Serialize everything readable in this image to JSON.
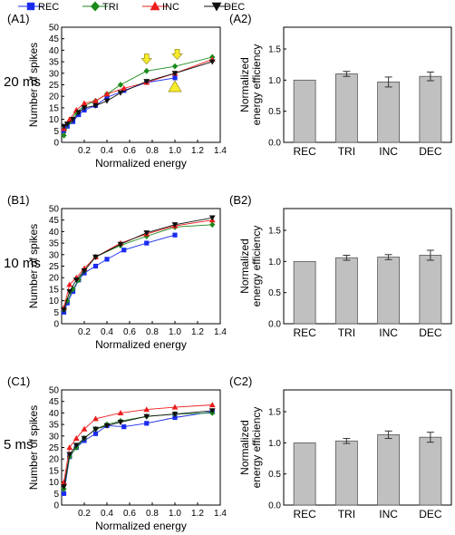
{
  "legend": {
    "items": [
      {
        "label": "REC",
        "color": "#1a2bf0",
        "marker": "square"
      },
      {
        "label": "TRI",
        "color": "#1a8a1a",
        "marker": "diamond"
      },
      {
        "label": "INC",
        "color": "#ee1c1c",
        "marker": "triangle-up"
      },
      {
        "label": "DEC",
        "color": "#111111",
        "marker": "triangle-down"
      }
    ]
  },
  "chart_data": [
    {
      "id": "A1",
      "panel_label": "(A1)",
      "row_label": "20 ms",
      "type": "line",
      "xlabel": "Normalized energy",
      "ylabel": "Number of spikes",
      "xlim": [
        0,
        1.4
      ],
      "ylim": [
        0,
        50
      ],
      "xticks": [
        "0.2",
        "0.4",
        "0.6",
        "0.8",
        "1.0",
        "1.2",
        "1.4"
      ],
      "yticks": [
        "0",
        "5",
        "10",
        "15",
        "20",
        "25",
        "30",
        "35",
        "40",
        "45",
        "50"
      ],
      "series": [
        {
          "name": "REC",
          "x": [
            0.02,
            0.05,
            0.1,
            0.15,
            0.2,
            0.3,
            0.4,
            0.55,
            0.75,
            1.0
          ],
          "y": [
            5,
            7,
            9,
            12,
            14,
            16,
            19.5,
            22.5,
            26,
            28
          ]
        },
        {
          "name": "TRI",
          "x": [
            0.02,
            0.07,
            0.13,
            0.2,
            0.3,
            0.4,
            0.52,
            0.75,
            1.0,
            1.33
          ],
          "y": [
            3,
            9,
            13,
            16,
            18,
            21,
            25,
            31,
            33,
            37
          ]
        },
        {
          "name": "INC",
          "x": [
            0.02,
            0.07,
            0.13,
            0.2,
            0.3,
            0.4,
            0.55,
            0.75,
            1.0,
            1.33
          ],
          "y": [
            6,
            10,
            14,
            17,
            18,
            21,
            23.5,
            26,
            30,
            36
          ]
        },
        {
          "name": "DEC",
          "x": [
            0.02,
            0.05,
            0.1,
            0.15,
            0.2,
            0.3,
            0.4,
            0.52,
            0.75,
            1.0,
            1.33
          ],
          "y": [
            7,
            8,
            10,
            13,
            15,
            16,
            18,
            21.5,
            26.5,
            30,
            35
          ]
        }
      ],
      "annotations": [
        {
          "type": "arrow-down",
          "color": "#f7ec2a",
          "x": 0.75,
          "y": 36
        },
        {
          "type": "arrow-down",
          "color": "#f7ec2a",
          "x": 1.02,
          "y": 38
        },
        {
          "type": "triangle-up",
          "color": "#f7ec2a",
          "x": 1.0,
          "y": 24
        }
      ]
    },
    {
      "id": "A2",
      "panel_label": "(A2)",
      "type": "bar",
      "ylabel": "Normalized\nenergy efficiency",
      "categories": [
        "REC",
        "TRI",
        "INC",
        "DEC"
      ],
      "values": [
        1.0,
        1.1,
        0.97,
        1.06
      ],
      "errors": [
        0,
        0.04,
        0.08,
        0.07
      ],
      "ylim": [
        0,
        1.85
      ],
      "yticks": [
        "0.0",
        "0.5",
        "1.0",
        "1.5"
      ],
      "bar_color": "#c0c0c0"
    },
    {
      "id": "B1",
      "panel_label": "(B1)",
      "row_label": "10 ms",
      "type": "line",
      "xlabel": "Normalized energy",
      "ylabel": "Number of spikes",
      "xlim": [
        0,
        1.4
      ],
      "ylim": [
        0,
        50
      ],
      "xticks": [
        "0.2",
        "0.4",
        "0.6",
        "0.8",
        "1.0",
        "1.2",
        "1.4"
      ],
      "yticks": [
        "0",
        "5",
        "10",
        "15",
        "20",
        "25",
        "30",
        "35",
        "40",
        "45",
        "50"
      ],
      "series": [
        {
          "name": "REC",
          "x": [
            0.02,
            0.05,
            0.1,
            0.15,
            0.2,
            0.3,
            0.4,
            0.55,
            0.75,
            1.0
          ],
          "y": [
            5,
            9,
            14,
            19,
            22,
            25,
            28,
            32,
            35,
            38.5
          ]
        },
        {
          "name": "TRI",
          "x": [
            0.02,
            0.05,
            0.1,
            0.15,
            0.2,
            0.3,
            0.52,
            0.75,
            1.0,
            1.33
          ],
          "y": [
            6,
            10,
            15,
            19,
            23,
            29,
            34,
            38,
            42,
            43
          ]
        },
        {
          "name": "INC",
          "x": [
            0.02,
            0.07,
            0.13,
            0.2,
            0.3,
            0.52,
            0.75,
            1.0,
            1.33
          ],
          "y": [
            7,
            17,
            20,
            24,
            29,
            35,
            39,
            42.5,
            45
          ]
        },
        {
          "name": "DEC",
          "x": [
            0.02,
            0.07,
            0.13,
            0.2,
            0.3,
            0.52,
            0.75,
            1.0,
            1.33
          ],
          "y": [
            6,
            14,
            19,
            23,
            29,
            34.5,
            39.5,
            43,
            46
          ]
        }
      ]
    },
    {
      "id": "B2",
      "panel_label": "(B2)",
      "type": "bar",
      "ylabel": "Normalized\nenergy efficiency",
      "categories": [
        "REC",
        "TRI",
        "INC",
        "DEC"
      ],
      "values": [
        1.0,
        1.06,
        1.07,
        1.1
      ],
      "errors": [
        0,
        0.04,
        0.04,
        0.08
      ],
      "ylim": [
        0,
        1.85
      ],
      "yticks": [
        "0.0",
        "0.5",
        "1.0",
        "1.5"
      ],
      "bar_color": "#c0c0c0"
    },
    {
      "id": "C1",
      "panel_label": "(C1)",
      "row_label": "5 ms",
      "type": "line",
      "xlabel": "Normalized energy",
      "ylabel": "Number of spikes",
      "xlim": [
        0,
        1.4
      ],
      "ylim": [
        0,
        50
      ],
      "xticks": [
        "0.2",
        "0.4",
        "0.6",
        "0.8",
        "1.0",
        "1.2",
        "1.4"
      ],
      "yticks": [
        "0",
        "5",
        "10",
        "15",
        "20",
        "25",
        "30",
        "35",
        "40",
        "45",
        "50"
      ],
      "series": [
        {
          "name": "REC",
          "x": [
            0.02,
            0.07,
            0.13,
            0.2,
            0.3,
            0.4,
            0.55,
            0.75,
            1.0,
            1.33
          ],
          "y": [
            5,
            21,
            25,
            28,
            31,
            34.5,
            34,
            35.5,
            38,
            40.5
          ]
        },
        {
          "name": "TRI",
          "x": [
            0.02,
            0.07,
            0.13,
            0.2,
            0.3,
            0.4,
            0.52,
            0.75,
            1.0,
            1.33
          ],
          "y": [
            7,
            21,
            25,
            29,
            33,
            35,
            36.5,
            38.5,
            39.5,
            40
          ]
        },
        {
          "name": "INC",
          "x": [
            0.02,
            0.07,
            0.13,
            0.2,
            0.3,
            0.52,
            0.75,
            1.0,
            1.33
          ],
          "y": [
            10,
            25,
            29,
            33,
            37.5,
            40,
            41.5,
            42.5,
            43.5
          ]
        },
        {
          "name": "DEC",
          "x": [
            0.02,
            0.07,
            0.13,
            0.2,
            0.3,
            0.4,
            0.52,
            0.75,
            1.0,
            1.33
          ],
          "y": [
            8,
            22,
            26,
            29,
            33,
            34.5,
            36,
            38.5,
            39.5,
            41
          ]
        }
      ]
    },
    {
      "id": "C2",
      "panel_label": "(C2)",
      "type": "bar",
      "ylabel": "Normalized\nenergy efficiency",
      "categories": [
        "REC",
        "TRI",
        "INC",
        "DEC"
      ],
      "values": [
        1.0,
        1.03,
        1.13,
        1.09
      ],
      "errors": [
        0,
        0.04,
        0.06,
        0.08
      ],
      "ylim": [
        0,
        1.85
      ],
      "yticks": [
        "0.0",
        "0.5",
        "1.0",
        "1.5"
      ],
      "bar_color": "#c0c0c0"
    }
  ]
}
